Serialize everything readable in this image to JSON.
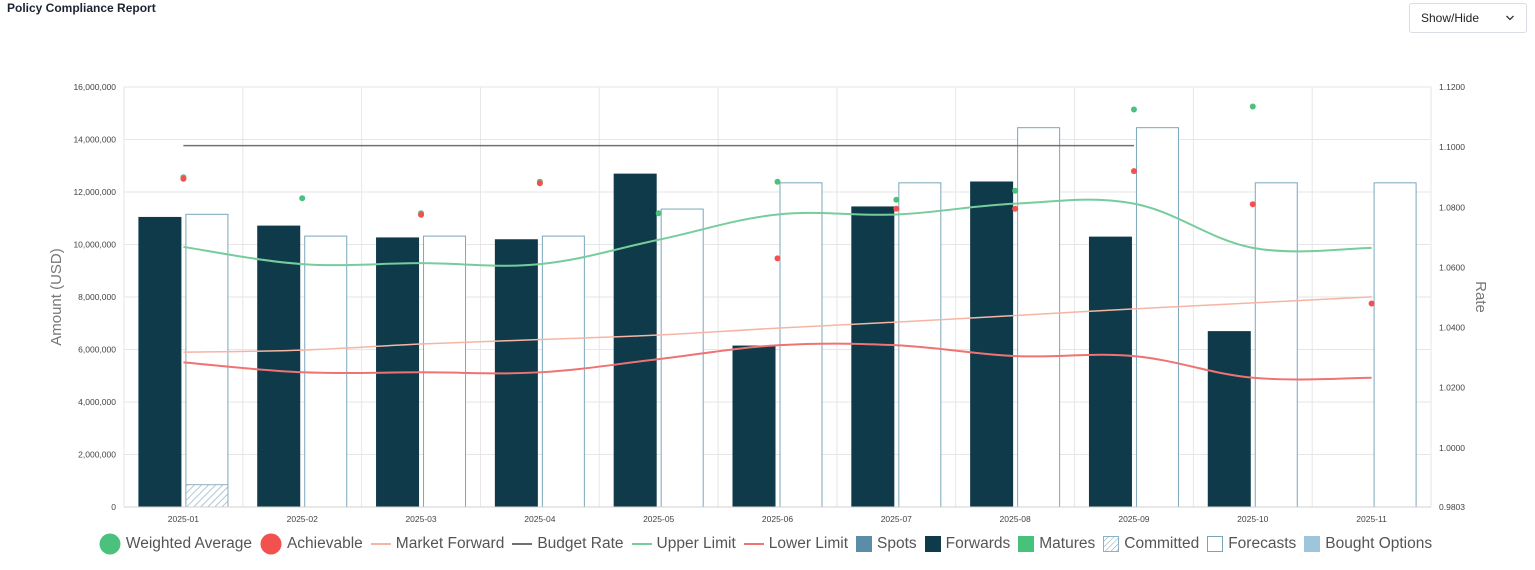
{
  "page": {
    "title": "Policy Compliance Report",
    "show_hide_label": "Show/Hide"
  },
  "chart_data": {
    "type": "bar",
    "categories": [
      "2025-01",
      "2025-02",
      "2025-03",
      "2025-04",
      "2025-05",
      "2025-06",
      "2025-07",
      "2025-08",
      "2025-09",
      "2025-10",
      "2025-11"
    ],
    "ylabel": "Amount (USD)",
    "y2label": "Rate",
    "ylim": [
      0,
      16000000
    ],
    "y_ticks": [
      "0",
      "2,000,000",
      "4,000,000",
      "6,000,000",
      "8,000,000",
      "10,000,000",
      "12,000,000",
      "14,000,000",
      "16,000,000"
    ],
    "y2lim": [
      0.9803,
      1.12
    ],
    "y2_ticks": [
      "0.9803",
      "1.0000",
      "1.0200",
      "1.0400",
      "1.0600",
      "1.0800",
      "1.1000",
      "1.1200"
    ],
    "grid": true,
    "legend_position": "bottom",
    "legend": [
      "Weighted Average",
      "Achievable",
      "Market Forward",
      "Budget Rate",
      "Upper Limit",
      "Lower Limit",
      "Spots",
      "Forwards",
      "Matures",
      "Committed",
      "Forecasts",
      "Bought Options"
    ],
    "bar_series": [
      {
        "name": "Forwards",
        "axis": "left",
        "values": [
          11050000,
          10720000,
          10270000,
          10200000,
          12700000,
          6150000,
          11450000,
          12400000,
          10300000,
          6700000,
          null
        ]
      },
      {
        "name": "Forecasts",
        "axis": "left",
        "values": [
          11150000,
          10320000,
          10320000,
          10320000,
          11350000,
          12350000,
          12350000,
          14450000,
          14450000,
          12350000,
          12350000
        ]
      },
      {
        "name": "Committed",
        "axis": "left",
        "values": [
          850000,
          null,
          null,
          null,
          null,
          null,
          null,
          null,
          null,
          null,
          null
        ]
      }
    ],
    "line_series": [
      {
        "name": "Upper Limit",
        "axis": "right",
        "values": [
          1.0668,
          1.0611,
          1.0614,
          1.0611,
          1.0692,
          1.0776,
          1.0776,
          1.0812,
          1.0812,
          1.0665,
          1.0665
        ]
      },
      {
        "name": "Lower Limit",
        "axis": "right",
        "values": [
          1.0284,
          1.0251,
          1.0251,
          1.0251,
          1.0295,
          1.0341,
          1.0341,
          1.0305,
          1.0305,
          1.0233,
          1.0233
        ]
      },
      {
        "name": "Market Forward",
        "axis": "right",
        "values": [
          1.0318,
          1.0325,
          1.0345,
          1.036,
          1.0375,
          1.0398,
          1.0418,
          1.044,
          1.0462,
          1.0482,
          1.0502
        ]
      },
      {
        "name": "Budget Rate",
        "axis": "right",
        "values": [
          1.1005,
          1.1005,
          1.1005,
          1.1005,
          1.1005,
          1.1005,
          1.1005,
          1.1005,
          1.1005,
          null,
          null
        ]
      }
    ],
    "point_series": [
      {
        "name": "Weighted Average",
        "axis": "right",
        "values": [
          1.09,
          1.083,
          1.078,
          1.0885,
          1.078,
          1.0885,
          1.0825,
          1.0855,
          1.1125,
          1.1135,
          null
        ]
      },
      {
        "name": "Achievable",
        "axis": "right",
        "values": [
          1.0895,
          null,
          1.0775,
          1.088,
          null,
          1.063,
          1.0795,
          1.0795,
          1.092,
          1.081,
          1.048
        ]
      }
    ],
    "colors": {
      "Forwards": "#0e3a4a",
      "Forecasts": "#7aa6ba",
      "Committed": "#8fb0c4",
      "Upper Limit": "#77cc9c",
      "Lower Limit": "#ef7373",
      "Market Forward": "#f6b5a4",
      "Budget Rate": "#707070",
      "Weighted Average": "#4cc17e",
      "Achievable": "#f35050",
      "Spots": "#5b8ea6",
      "Matures": "#48c27a",
      "Bought Options": "#9ec5d8"
    }
  }
}
